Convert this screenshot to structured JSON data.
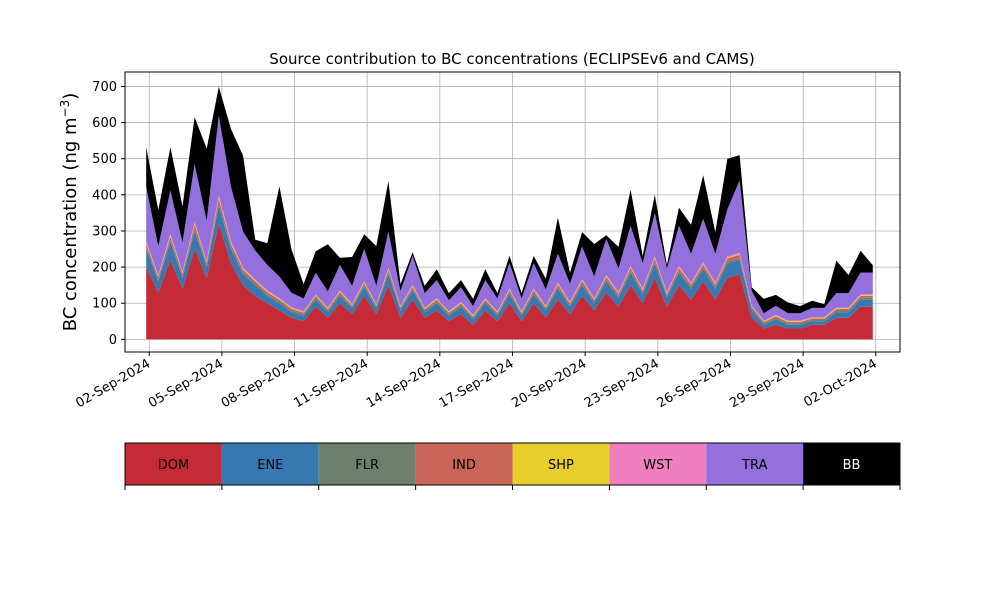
{
  "chart_data": {
    "type": "area",
    "stacked": true,
    "title": "Source contribution to BC concentrations (ECLIPSEv6 and CAMS)",
    "ylabel_main": "BC concentration (ng m",
    "ylabel_unit_exp": "−3",
    "ylabel_close": ")",
    "xlabel": "",
    "ylim": [
      -35,
      740
    ],
    "yticks": [
      0,
      100,
      200,
      300,
      400,
      500,
      600,
      700
    ],
    "xlim": [
      "2024-09-01T00:00",
      "2024-10-03T00:00"
    ],
    "xticks": [
      "2024-09-02",
      "2024-09-05",
      "2024-09-08",
      "2024-09-11",
      "2024-09-14",
      "2024-09-17",
      "2024-09-20",
      "2024-09-23",
      "2024-09-26",
      "2024-09-29",
      "2024-10-02"
    ],
    "xtick_labels": [
      "02-Sep-2024",
      "05-Sep-2024",
      "08-Sep-2024",
      "11-Sep-2024",
      "14-Sep-2024",
      "17-Sep-2024",
      "20-Sep-2024",
      "23-Sep-2024",
      "26-Sep-2024",
      "29-Sep-2024",
      "02-Oct-2024"
    ],
    "grid": true,
    "legend": "below",
    "x": [
      "2024-09-02T21:00",
      "2024-09-02T00:00",
      "2024-09-02T12:00",
      "2024-09-03T00:00",
      "2024-09-03T12:00",
      "2024-09-04T00:00",
      "2024-09-04T12:00",
      "2024-09-05T00:00",
      "2024-09-05T12:00",
      "2024-09-06T00:00",
      "2024-09-06T12:00",
      "2024-09-07T00:00",
      "2024-09-07T12:00",
      "2024-09-08T00:00",
      "2024-09-08T12:00",
      "2024-09-09T00:00",
      "2024-09-09T12:00",
      "2024-09-10T00:00",
      "2024-09-10T12:00",
      "2024-09-11T00:00",
      "2024-09-11T12:00",
      "2024-09-12T00:00",
      "2024-09-12T12:00",
      "2024-09-13T00:00",
      "2024-09-13T12:00",
      "2024-09-14T00:00",
      "2024-09-14T12:00",
      "2024-09-15T00:00",
      "2024-09-15T12:00",
      "2024-09-16T00:00",
      "2024-09-16T12:00",
      "2024-09-17T00:00",
      "2024-09-17T12:00",
      "2024-09-18T00:00",
      "2024-09-18T12:00",
      "2024-09-19T00:00",
      "2024-09-19T12:00",
      "2024-09-20T00:00",
      "2024-09-20T12:00",
      "2024-09-21T00:00",
      "2024-09-21T12:00",
      "2024-09-22T00:00",
      "2024-09-22T12:00",
      "2024-09-23T00:00",
      "2024-09-23T12:00",
      "2024-09-24T00:00",
      "2024-09-24T12:00",
      "2024-09-25T00:00",
      "2024-09-25T12:00",
      "2024-09-26T00:00",
      "2024-09-26T12:00",
      "2024-09-27T00:00",
      "2024-09-27T12:00",
      "2024-09-28T00:00",
      "2024-09-28T12:00",
      "2024-09-29T00:00",
      "2024-09-29T12:00",
      "2024-09-30T00:00",
      "2024-09-30T12:00",
      "2024-10-01T00:00",
      "2024-10-01T12:00"
    ],
    "series": [
      {
        "name": "DOM",
        "color": "#c52a37",
        "values": [
          200,
          130,
          220,
          140,
          250,
          170,
          320,
          210,
          150,
          120,
          100,
          80,
          60,
          50,
          90,
          60,
          100,
          70,
          120,
          70,
          150,
          60,
          110,
          60,
          80,
          50,
          70,
          40,
          80,
          50,
          100,
          50,
          100,
          60,
          110,
          70,
          120,
          80,
          130,
          90,
          150,
          100,
          170,
          90,
          150,
          110,
          160,
          110,
          170,
          180,
          60,
          30,
          40,
          30,
          30,
          40,
          40,
          60,
          60,
          90,
          90
        ]
      },
      {
        "name": "ENE",
        "color": "#3778b0",
        "values": [
          50,
          30,
          50,
          30,
          50,
          30,
          50,
          40,
          30,
          30,
          20,
          20,
          15,
          15,
          20,
          15,
          20,
          15,
          25,
          15,
          30,
          20,
          25,
          15,
          20,
          15,
          20,
          15,
          20,
          15,
          25,
          15,
          25,
          20,
          30,
          20,
          30,
          20,
          30,
          25,
          35,
          25,
          40,
          25,
          35,
          30,
          35,
          30,
          40,
          40,
          20,
          10,
          15,
          10,
          10,
          10,
          10,
          15,
          15,
          20,
          20
        ]
      },
      {
        "name": "FLR",
        "color": "#6e7f6d",
        "values": [
          5,
          5,
          5,
          5,
          5,
          5,
          5,
          5,
          5,
          5,
          5,
          5,
          5,
          5,
          5,
          5,
          5,
          5,
          5,
          5,
          5,
          5,
          5,
          5,
          5,
          5,
          5,
          5,
          5,
          5,
          5,
          5,
          5,
          5,
          5,
          5,
          5,
          5,
          5,
          5,
          5,
          5,
          5,
          5,
          5,
          5,
          5,
          5,
          5,
          5,
          5,
          5,
          5,
          5,
          5,
          5,
          5,
          5,
          5,
          5,
          5
        ]
      },
      {
        "name": "IND",
        "color": "#c96458",
        "values": [
          10,
          8,
          10,
          8,
          12,
          8,
          15,
          10,
          8,
          6,
          6,
          5,
          5,
          4,
          5,
          4,
          6,
          4,
          6,
          4,
          8,
          4,
          6,
          4,
          5,
          4,
          5,
          3,
          5,
          4,
          6,
          4,
          6,
          4,
          7,
          5,
          7,
          5,
          8,
          6,
          8,
          6,
          9,
          6,
          8,
          7,
          8,
          7,
          9,
          9,
          5,
          3,
          4,
          3,
          3,
          3,
          3,
          4,
          4,
          5,
          5
        ]
      },
      {
        "name": "SHP",
        "color": "#e8cf2e",
        "values": [
          3,
          2,
          3,
          2,
          3,
          2,
          3,
          3,
          2,
          2,
          2,
          2,
          2,
          2,
          2,
          2,
          2,
          2,
          2,
          2,
          2,
          2,
          2,
          2,
          2,
          2,
          2,
          2,
          2,
          2,
          2,
          2,
          2,
          2,
          2,
          2,
          2,
          2,
          2,
          2,
          2,
          2,
          2,
          2,
          2,
          2,
          2,
          2,
          2,
          2,
          2,
          2,
          2,
          2,
          2,
          2,
          2,
          2,
          2,
          2,
          2
        ]
      },
      {
        "name": "WST",
        "color": "#f07fbf",
        "values": [
          4,
          3,
          4,
          3,
          5,
          3,
          6,
          4,
          3,
          3,
          3,
          2,
          2,
          2,
          2,
          2,
          3,
          2,
          3,
          2,
          3,
          2,
          3,
          2,
          2,
          2,
          2,
          2,
          2,
          2,
          3,
          2,
          3,
          2,
          3,
          2,
          3,
          2,
          3,
          3,
          4,
          3,
          4,
          3,
          4,
          3,
          4,
          3,
          4,
          4,
          2,
          2,
          2,
          2,
          2,
          2,
          2,
          2,
          2,
          3,
          3
        ]
      },
      {
        "name": "TRA",
        "color": "#9370db",
        "values": [
          150,
          80,
          120,
          80,
          160,
          110,
          220,
          150,
          100,
          80,
          70,
          60,
          40,
          35,
          60,
          45,
          70,
          50,
          90,
          50,
          100,
          40,
          80,
          40,
          50,
          30,
          40,
          25,
          50,
          35,
          70,
          35,
          70,
          45,
          80,
          50,
          90,
          60,
          100,
          65,
          110,
          70,
          120,
          65,
          110,
          80,
          120,
          80,
          130,
          200,
          40,
          20,
          25,
          20,
          20,
          25,
          25,
          40,
          40,
          60,
          60
        ]
      },
      {
        "name": "BB",
        "color": "#000000",
        "values": [
          110,
          100,
          120,
          100,
          130,
          200,
          80,
          160,
          210,
          30,
          60,
          250,
          120,
          40,
          60,
          130,
          20,
          80,
          40,
          110,
          140,
          20,
          10,
          20,
          30,
          20,
          20,
          20,
          30,
          15,
          20,
          15,
          20,
          30,
          100,
          30,
          40,
          90,
          10,
          60,
          100,
          20,
          50,
          10,
          50,
          80,
          120,
          60,
          140,
          70,
          10,
          40,
          30,
          30,
          20,
          20,
          10,
          90,
          50,
          60,
          20
        ]
      }
    ]
  },
  "legend_items": [
    {
      "label": "DOM",
      "color": "#c52a37",
      "text_color": "#000000"
    },
    {
      "label": "ENE",
      "color": "#3778b0",
      "text_color": "#000000"
    },
    {
      "label": "FLR",
      "color": "#6e7f6d",
      "text_color": "#000000"
    },
    {
      "label": "IND",
      "color": "#c96458",
      "text_color": "#000000"
    },
    {
      "label": "SHP",
      "color": "#e8cf2e",
      "text_color": "#000000"
    },
    {
      "label": "WST",
      "color": "#f07fbf",
      "text_color": "#000000"
    },
    {
      "label": "TRA",
      "color": "#9370db",
      "text_color": "#000000"
    },
    {
      "label": "BB",
      "color": "#000000",
      "text_color": "#ffffff"
    }
  ]
}
